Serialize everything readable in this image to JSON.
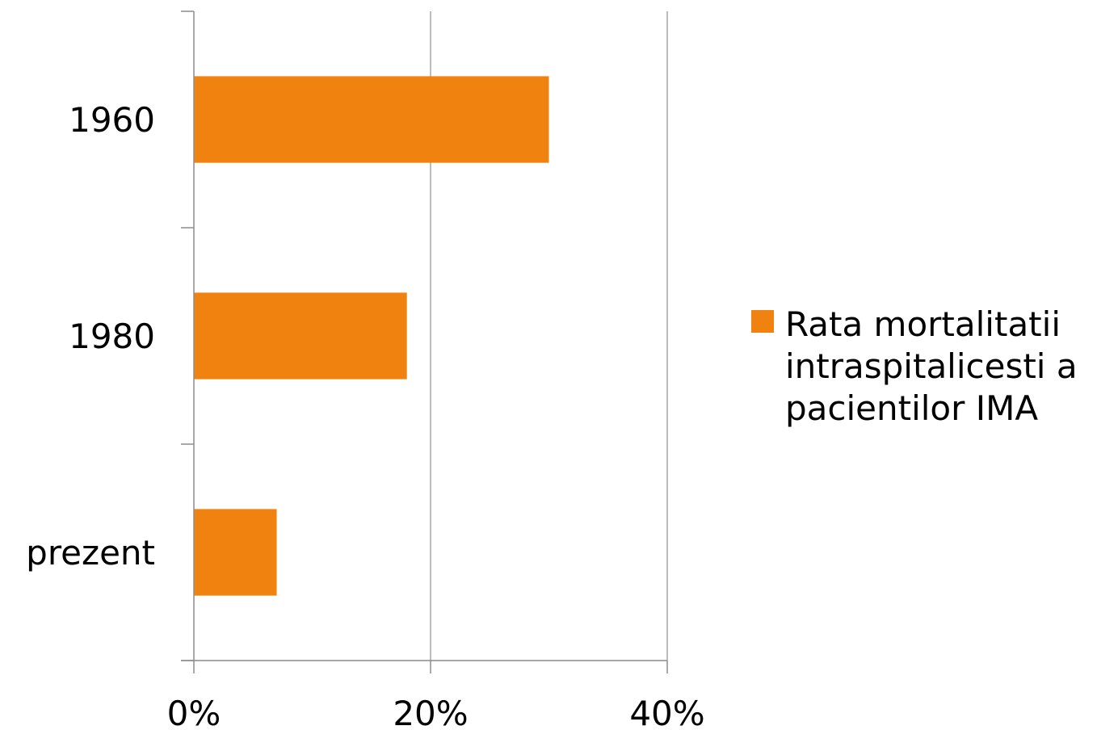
{
  "chart_data": {
    "type": "bar",
    "orientation": "horizontal",
    "categories": [
      "1960",
      "1980",
      "prezent"
    ],
    "series": [
      {
        "name": "Rata mortalitatii intraspitalicesti a pacientilor IMA",
        "values": [
          30,
          18,
          7
        ]
      }
    ],
    "xlim": [
      0,
      40
    ],
    "x_ticks": [
      0,
      20,
      40
    ],
    "x_tick_labels": [
      "0%",
      "20%",
      "40%"
    ],
    "grid": "vertical",
    "legend_position": "right",
    "colors": {
      "bar": "#F0820F",
      "grid": "#A6A6A6",
      "axis": "#8C8C8C"
    }
  },
  "legend": {
    "label": "Rata mortalitatii\nintraspitalicesti a\npacientilor IMA"
  }
}
